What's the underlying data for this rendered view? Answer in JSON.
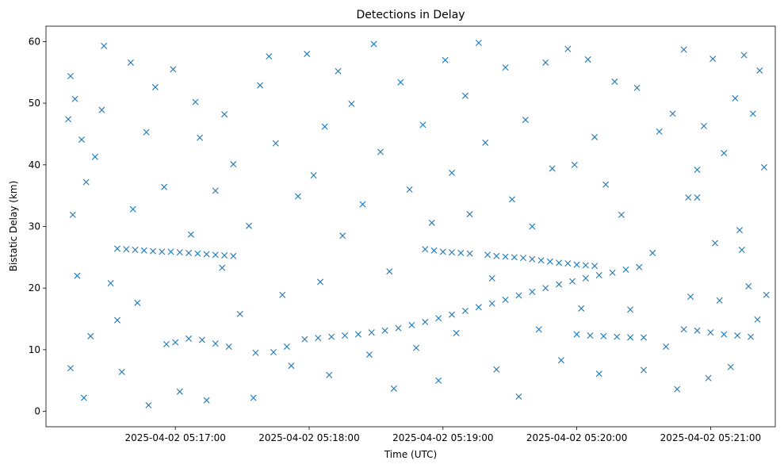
{
  "chart_data": {
    "type": "scatter",
    "title": "Detections in Delay",
    "xlabel": "Time (UTC)",
    "ylabel": "Bistatic Delay (km)",
    "x_unit": "UTC time on 2025-04-02",
    "x_range": [
      "2025-04-02 05:16:02",
      "2025-04-02 05:21:29"
    ],
    "ylim": [
      -2.5,
      62.5
    ],
    "x_ticks": [
      "2025-04-02 05:17:00",
      "2025-04-02 05:18:00",
      "2025-04-02 05:19:00",
      "2025-04-02 05:20:00",
      "2025-04-02 05:21:00"
    ],
    "y_ticks": [
      0,
      10,
      20,
      30,
      40,
      50,
      60
    ],
    "grid": false,
    "marker": "x",
    "color": "#1f77b4",
    "series": [
      {
        "name": "",
        "points": [
          [
            "2025-04-02 05:16:34",
            26.4
          ],
          [
            "2025-04-02 05:16:38",
            26.3
          ],
          [
            "2025-04-02 05:16:42",
            26.2
          ],
          [
            "2025-04-02 05:16:46",
            26.1
          ],
          [
            "2025-04-02 05:16:50",
            26.0
          ],
          [
            "2025-04-02 05:16:54",
            25.9
          ],
          [
            "2025-04-02 05:16:58",
            25.9
          ],
          [
            "2025-04-02 05:17:02",
            25.8
          ],
          [
            "2025-04-02 05:17:06",
            25.7
          ],
          [
            "2025-04-02 05:17:10",
            25.6
          ],
          [
            "2025-04-02 05:17:14",
            25.5
          ],
          [
            "2025-04-02 05:17:18",
            25.4
          ],
          [
            "2025-04-02 05:17:22",
            25.3
          ],
          [
            "2025-04-02 05:17:26",
            25.2
          ],
          [
            "2025-04-02 05:18:52",
            26.3
          ],
          [
            "2025-04-02 05:18:56",
            26.1
          ],
          [
            "2025-04-02 05:19:00",
            25.9
          ],
          [
            "2025-04-02 05:19:04",
            25.8
          ],
          [
            "2025-04-02 05:19:08",
            25.7
          ],
          [
            "2025-04-02 05:19:12",
            25.6
          ],
          [
            "2025-04-02 05:19:20",
            25.4
          ],
          [
            "2025-04-02 05:19:24",
            25.2
          ],
          [
            "2025-04-02 05:19:28",
            25.1
          ],
          [
            "2025-04-02 05:19:32",
            25.0
          ],
          [
            "2025-04-02 05:19:36",
            24.9
          ],
          [
            "2025-04-02 05:19:40",
            24.7
          ],
          [
            "2025-04-02 05:19:44",
            24.5
          ],
          [
            "2025-04-02 05:19:48",
            24.3
          ],
          [
            "2025-04-02 05:19:52",
            24.1
          ],
          [
            "2025-04-02 05:19:56",
            24.0
          ],
          [
            "2025-04-02 05:20:00",
            23.8
          ],
          [
            "2025-04-02 05:20:04",
            23.7
          ],
          [
            "2025-04-02 05:20:08",
            23.6
          ],
          [
            "2025-04-02 05:17:58",
            11.7
          ],
          [
            "2025-04-02 05:18:04",
            11.9
          ],
          [
            "2025-04-02 05:18:10",
            12.1
          ],
          [
            "2025-04-02 05:18:16",
            12.3
          ],
          [
            "2025-04-02 05:18:22",
            12.5
          ],
          [
            "2025-04-02 05:18:28",
            12.8
          ],
          [
            "2025-04-02 05:18:34",
            13.1
          ],
          [
            "2025-04-02 05:18:40",
            13.5
          ],
          [
            "2025-04-02 05:18:46",
            14.0
          ],
          [
            "2025-04-02 05:18:52",
            14.5
          ],
          [
            "2025-04-02 05:18:58",
            15.1
          ],
          [
            "2025-04-02 05:19:04",
            15.7
          ],
          [
            "2025-04-02 05:19:10",
            16.3
          ],
          [
            "2025-04-02 05:19:16",
            16.9
          ],
          [
            "2025-04-02 05:19:22",
            17.5
          ],
          [
            "2025-04-02 05:19:28",
            18.1
          ],
          [
            "2025-04-02 05:19:34",
            18.8
          ],
          [
            "2025-04-02 05:19:40",
            19.4
          ],
          [
            "2025-04-02 05:19:46",
            20.0
          ],
          [
            "2025-04-02 05:19:52",
            20.6
          ],
          [
            "2025-04-02 05:19:58",
            21.1
          ],
          [
            "2025-04-02 05:20:04",
            21.6
          ],
          [
            "2025-04-02 05:20:10",
            22.1
          ],
          [
            "2025-04-02 05:20:16",
            22.5
          ],
          [
            "2025-04-02 05:20:22",
            23.0
          ],
          [
            "2025-04-02 05:20:28",
            23.4
          ],
          [
            "2025-04-02 05:20:00",
            12.5
          ],
          [
            "2025-04-02 05:20:06",
            12.3
          ],
          [
            "2025-04-02 05:20:12",
            12.2
          ],
          [
            "2025-04-02 05:20:18",
            12.1
          ],
          [
            "2025-04-02 05:20:24",
            12.0
          ],
          [
            "2025-04-02 05:20:30",
            12.0
          ],
          [
            "2025-04-02 05:20:48",
            13.3
          ],
          [
            "2025-04-02 05:20:54",
            13.1
          ],
          [
            "2025-04-02 05:21:00",
            12.8
          ],
          [
            "2025-04-02 05:21:06",
            12.5
          ],
          [
            "2025-04-02 05:21:12",
            12.3
          ],
          [
            "2025-04-02 05:21:18",
            12.1
          ],
          [
            "2025-04-02 05:17:00",
            11.2
          ],
          [
            "2025-04-02 05:17:06",
            11.8
          ],
          [
            "2025-04-02 05:17:12",
            11.6
          ],
          [
            "2025-04-02 05:17:18",
            11.0
          ],
          [
            "2025-04-02 05:17:24",
            10.5
          ],
          [
            "2025-04-02 05:17:36",
            9.5
          ],
          [
            "2025-04-02 05:17:44",
            9.6
          ],
          [
            "2025-04-02 05:17:50",
            10.5
          ],
          [
            "2025-04-02 05:20:50",
            34.7
          ],
          [
            "2025-04-02 05:20:54",
            34.7
          ],
          [
            "2025-04-02 05:21:02",
            27.3
          ],
          [
            "2025-04-02 05:21:14",
            26.2
          ],
          [
            "2025-04-02 05:16:12",
            47.4
          ],
          [
            "2025-04-02 05:16:13",
            54.4
          ],
          [
            "2025-04-02 05:16:15",
            50.7
          ],
          [
            "2025-04-02 05:16:14",
            31.9
          ],
          [
            "2025-04-02 05:16:18",
            44.1
          ],
          [
            "2025-04-02 05:16:16",
            22.0
          ],
          [
            "2025-04-02 05:16:20",
            37.2
          ],
          [
            "2025-04-02 05:16:22",
            12.2
          ],
          [
            "2025-04-02 05:16:13",
            7.0
          ],
          [
            "2025-04-02 05:16:19",
            2.2
          ],
          [
            "2025-04-02 05:16:24",
            41.3
          ],
          [
            "2025-04-02 05:16:28",
            59.3
          ],
          [
            "2025-04-02 05:16:27",
            48.9
          ],
          [
            "2025-04-02 05:16:31",
            20.8
          ],
          [
            "2025-04-02 05:16:34",
            14.8
          ],
          [
            "2025-04-02 05:16:36",
            6.4
          ],
          [
            "2025-04-02 05:16:40",
            56.6
          ],
          [
            "2025-04-02 05:16:41",
            32.8
          ],
          [
            "2025-04-02 05:16:43",
            17.6
          ],
          [
            "2025-04-02 05:16:47",
            45.3
          ],
          [
            "2025-04-02 05:16:48",
            1.0
          ],
          [
            "2025-04-02 05:16:51",
            52.6
          ],
          [
            "2025-04-02 05:16:55",
            36.4
          ],
          [
            "2025-04-02 05:16:56",
            10.9
          ],
          [
            "2025-04-02 05:16:59",
            55.5
          ],
          [
            "2025-04-02 05:17:02",
            3.2
          ],
          [
            "2025-04-02 05:17:07",
            28.7
          ],
          [
            "2025-04-02 05:17:09",
            50.2
          ],
          [
            "2025-04-02 05:17:11",
            44.4
          ],
          [
            "2025-04-02 05:17:14",
            1.8
          ],
          [
            "2025-04-02 05:17:18",
            35.8
          ],
          [
            "2025-04-02 05:17:21",
            23.3
          ],
          [
            "2025-04-02 05:17:22",
            48.2
          ],
          [
            "2025-04-02 05:17:26",
            40.1
          ],
          [
            "2025-04-02 05:17:29",
            15.8
          ],
          [
            "2025-04-02 05:17:33",
            30.1
          ],
          [
            "2025-04-02 05:17:35",
            2.2
          ],
          [
            "2025-04-02 05:17:38",
            52.9
          ],
          [
            "2025-04-02 05:17:42",
            57.6
          ],
          [
            "2025-04-02 05:17:45",
            43.5
          ],
          [
            "2025-04-02 05:17:48",
            18.9
          ],
          [
            "2025-04-02 05:17:52",
            7.4
          ],
          [
            "2025-04-02 05:17:55",
            34.9
          ],
          [
            "2025-04-02 05:17:59",
            58.0
          ],
          [
            "2025-04-02 05:18:02",
            38.3
          ],
          [
            "2025-04-02 05:18:05",
            21.0
          ],
          [
            "2025-04-02 05:18:07",
            46.2
          ],
          [
            "2025-04-02 05:18:09",
            5.9
          ],
          [
            "2025-04-02 05:18:13",
            55.2
          ],
          [
            "2025-04-02 05:18:15",
            28.5
          ],
          [
            "2025-04-02 05:18:19",
            49.9
          ],
          [
            "2025-04-02 05:18:24",
            33.6
          ],
          [
            "2025-04-02 05:18:27",
            9.2
          ],
          [
            "2025-04-02 05:18:29",
            59.6
          ],
          [
            "2025-04-02 05:18:32",
            42.1
          ],
          [
            "2025-04-02 05:18:36",
            22.7
          ],
          [
            "2025-04-02 05:18:38",
            3.7
          ],
          [
            "2025-04-02 05:18:41",
            53.4
          ],
          [
            "2025-04-02 05:18:45",
            36.0
          ],
          [
            "2025-04-02 05:18:48",
            10.3
          ],
          [
            "2025-04-02 05:18:51",
            46.5
          ],
          [
            "2025-04-02 05:18:55",
            30.6
          ],
          [
            "2025-04-02 05:18:58",
            5.0
          ],
          [
            "2025-04-02 05:19:01",
            57.0
          ],
          [
            "2025-04-02 05:19:04",
            38.7
          ],
          [
            "2025-04-02 05:19:06",
            12.7
          ],
          [
            "2025-04-02 05:19:10",
            51.2
          ],
          [
            "2025-04-02 05:19:12",
            32.0
          ],
          [
            "2025-04-02 05:19:16",
            59.8
          ],
          [
            "2025-04-02 05:19:19",
            43.6
          ],
          [
            "2025-04-02 05:19:22",
            21.6
          ],
          [
            "2025-04-02 05:19:24",
            6.8
          ],
          [
            "2025-04-02 05:19:28",
            55.8
          ],
          [
            "2025-04-02 05:19:31",
            34.4
          ],
          [
            "2025-04-02 05:19:34",
            2.4
          ],
          [
            "2025-04-02 05:19:37",
            47.3
          ],
          [
            "2025-04-02 05:19:40",
            30.0
          ],
          [
            "2025-04-02 05:19:43",
            13.3
          ],
          [
            "2025-04-02 05:19:46",
            56.6
          ],
          [
            "2025-04-02 05:19:49",
            39.4
          ],
          [
            "2025-04-02 05:19:53",
            8.3
          ],
          [
            "2025-04-02 05:19:56",
            58.8
          ],
          [
            "2025-04-02 05:19:59",
            40.0
          ],
          [
            "2025-04-02 05:20:02",
            16.7
          ],
          [
            "2025-04-02 05:20:05",
            57.1
          ],
          [
            "2025-04-02 05:20:08",
            44.5
          ],
          [
            "2025-04-02 05:20:10",
            6.1
          ],
          [
            "2025-04-02 05:20:13",
            36.8
          ],
          [
            "2025-04-02 05:20:17",
            53.5
          ],
          [
            "2025-04-02 05:20:20",
            31.9
          ],
          [
            "2025-04-02 05:20:24",
            16.5
          ],
          [
            "2025-04-02 05:20:27",
            52.5
          ],
          [
            "2025-04-02 05:20:30",
            6.7
          ],
          [
            "2025-04-02 05:20:34",
            25.7
          ],
          [
            "2025-04-02 05:20:37",
            45.4
          ],
          [
            "2025-04-02 05:20:40",
            10.5
          ],
          [
            "2025-04-02 05:20:43",
            48.3
          ],
          [
            "2025-04-02 05:20:45",
            3.6
          ],
          [
            "2025-04-02 05:20:48",
            58.7
          ],
          [
            "2025-04-02 05:20:51",
            18.6
          ],
          [
            "2025-04-02 05:20:54",
            39.2
          ],
          [
            "2025-04-02 05:20:57",
            46.3
          ],
          [
            "2025-04-02 05:20:59",
            5.4
          ],
          [
            "2025-04-02 05:21:01",
            57.2
          ],
          [
            "2025-04-02 05:21:04",
            18.0
          ],
          [
            "2025-04-02 05:21:06",
            41.9
          ],
          [
            "2025-04-02 05:21:09",
            7.2
          ],
          [
            "2025-04-02 05:21:11",
            50.8
          ],
          [
            "2025-04-02 05:21:13",
            29.4
          ],
          [
            "2025-04-02 05:21:15",
            57.8
          ],
          [
            "2025-04-02 05:21:17",
            20.3
          ],
          [
            "2025-04-02 05:21:19",
            48.3
          ],
          [
            "2025-04-02 05:21:21",
            14.9
          ],
          [
            "2025-04-02 05:21:22",
            55.3
          ],
          [
            "2025-04-02 05:21:24",
            39.6
          ],
          [
            "2025-04-02 05:21:25",
            18.9
          ]
        ]
      }
    ]
  }
}
